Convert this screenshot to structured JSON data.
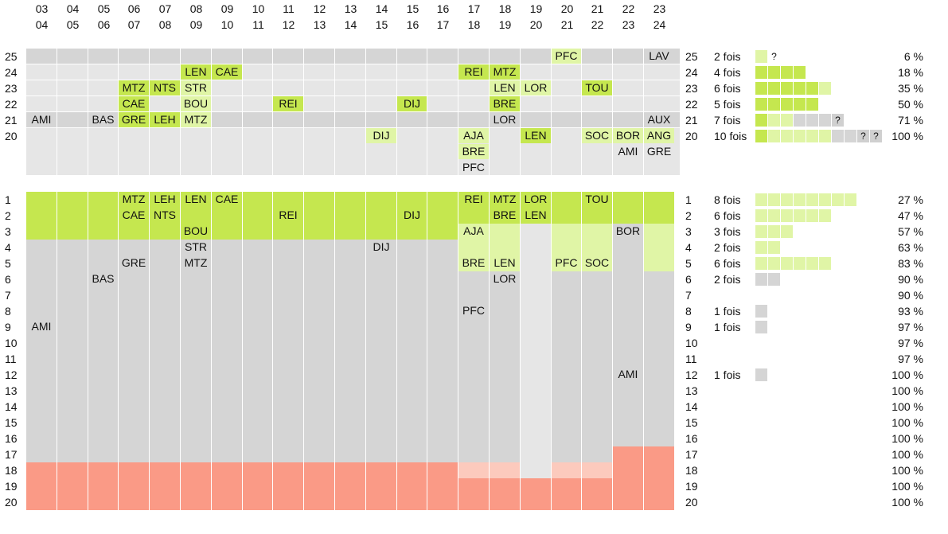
{
  "chart_data": {
    "type": "table",
    "columns": [
      {
        "top": "03",
        "bottom": "04"
      },
      {
        "top": "04",
        "bottom": "05"
      },
      {
        "top": "05",
        "bottom": "06"
      },
      {
        "top": "06",
        "bottom": "07"
      },
      {
        "top": "07",
        "bottom": "08"
      },
      {
        "top": "08",
        "bottom": "09"
      },
      {
        "top": "09",
        "bottom": "10"
      },
      {
        "top": "10",
        "bottom": "11"
      },
      {
        "top": "11",
        "bottom": "12"
      },
      {
        "top": "12",
        "bottom": "13"
      },
      {
        "top": "13",
        "bottom": "14"
      },
      {
        "top": "14",
        "bottom": "15"
      },
      {
        "top": "15",
        "bottom": "16"
      },
      {
        "top": "16",
        "bottom": "17"
      },
      {
        "top": "17",
        "bottom": "18"
      },
      {
        "top": "18",
        "bottom": "19"
      },
      {
        "top": "19",
        "bottom": "20"
      },
      {
        "top": "20",
        "bottom": "21"
      },
      {
        "top": "21",
        "bottom": "22"
      },
      {
        "top": "22",
        "bottom": "23"
      },
      {
        "top": "23",
        "bottom": "24"
      }
    ],
    "upper_section": {
      "rows": [
        {
          "label": "25",
          "count": "2 fois",
          "percent": "6 %",
          "blocks": [
            "l",
            "?"
          ]
        },
        {
          "label": "24",
          "count": "4 fois",
          "percent": "18 %",
          "blocks": [
            "d",
            "d",
            "d",
            "d"
          ]
        },
        {
          "label": "23",
          "count": "6 fois",
          "percent": "35 %",
          "blocks": [
            "d",
            "d",
            "d",
            "d",
            "d",
            "l"
          ]
        },
        {
          "label": "22",
          "count": "5 fois",
          "percent": "50 %",
          "blocks": [
            "d",
            "d",
            "d",
            "d",
            "d"
          ]
        },
        {
          "label": "21",
          "count": "7 fois",
          "percent": "71 %",
          "blocks": [
            "d",
            "l",
            "l",
            "g",
            "g",
            "g",
            "?"
          ]
        },
        {
          "label": "20",
          "count": "10 fois",
          "percent": "100 %",
          "blocks": [
            "d",
            "l",
            "l",
            "l",
            "l",
            "l",
            "g",
            "g",
            "?",
            "?"
          ]
        }
      ],
      "entries": [
        {
          "col": 17,
          "row": "25",
          "team": "PFC",
          "shade": "l"
        },
        {
          "col": 20,
          "row": "25",
          "team": "LAV"
        },
        {
          "col": 5,
          "row": "24",
          "team": "LEN",
          "shade": "d"
        },
        {
          "col": 6,
          "row": "24",
          "team": "CAE",
          "shade": "d"
        },
        {
          "col": 14,
          "row": "24",
          "team": "REI",
          "shade": "d"
        },
        {
          "col": 15,
          "row": "24",
          "team": "MTZ",
          "shade": "d"
        },
        {
          "col": 3,
          "row": "23",
          "team": "MTZ",
          "shade": "d"
        },
        {
          "col": 4,
          "row": "23",
          "team": "NTS",
          "shade": "d"
        },
        {
          "col": 5,
          "row": "23",
          "team": "STR",
          "shade": "l"
        },
        {
          "col": 15,
          "row": "23",
          "team": "LEN",
          "shade": "l"
        },
        {
          "col": 16,
          "row": "23",
          "team": "LOR",
          "shade": "l"
        },
        {
          "col": 18,
          "row": "23",
          "team": "TOU",
          "shade": "d"
        },
        {
          "col": 3,
          "row": "22",
          "team": "CAE",
          "shade": "d"
        },
        {
          "col": 5,
          "row": "22",
          "team": "BOU",
          "shade": "l"
        },
        {
          "col": 8,
          "row": "22",
          "team": "REI",
          "shade": "d"
        },
        {
          "col": 12,
          "row": "22",
          "team": "DIJ",
          "shade": "d"
        },
        {
          "col": 15,
          "row": "22",
          "team": "BRE",
          "shade": "d"
        },
        {
          "col": 0,
          "row": "21",
          "team": "AMI"
        },
        {
          "col": 2,
          "row": "21",
          "team": "BAS"
        },
        {
          "col": 3,
          "row": "21",
          "team": "GRE",
          "shade": "d"
        },
        {
          "col": 4,
          "row": "21",
          "team": "LEH",
          "shade": "d"
        },
        {
          "col": 5,
          "row": "21",
          "team": "MTZ",
          "shade": "l"
        },
        {
          "col": 15,
          "row": "21",
          "team": "LOR"
        },
        {
          "col": 20,
          "row": "21",
          "team": "AUX"
        },
        {
          "col": 11,
          "row": "20",
          "line": 0,
          "team": "DIJ",
          "shade": "l"
        },
        {
          "col": 14,
          "row": "20",
          "line": 0,
          "team": "AJA",
          "shade": "l"
        },
        {
          "col": 16,
          "row": "20",
          "line": 0,
          "team": "LEN",
          "shade": "d"
        },
        {
          "col": 18,
          "row": "20",
          "line": 0,
          "team": "SOC",
          "shade": "l"
        },
        {
          "col": 19,
          "row": "20",
          "line": 0,
          "team": "BOR",
          "shade": "l"
        },
        {
          "col": 20,
          "row": "20",
          "line": 0,
          "team": "ANG",
          "shade": "l"
        },
        {
          "col": 14,
          "row": "20",
          "line": 1,
          "team": "BRE",
          "shade": "l"
        },
        {
          "col": 19,
          "row": "20",
          "line": 1,
          "team": "AMI"
        },
        {
          "col": 20,
          "row": "20",
          "line": 1,
          "team": "GRE"
        },
        {
          "col": 14,
          "row": "20",
          "line": 2,
          "team": "PFC"
        }
      ]
    },
    "lower_section": {
      "rows": [
        {
          "label": "1",
          "count": "8 fois",
          "percent": "27 %",
          "blocks": [
            "l",
            "l",
            "l",
            "l",
            "l",
            "l",
            "l",
            "l"
          ]
        },
        {
          "label": "2",
          "count": "6 fois",
          "percent": "47 %",
          "blocks": [
            "l",
            "l",
            "l",
            "l",
            "l",
            "l"
          ]
        },
        {
          "label": "3",
          "count": "3 fois",
          "percent": "57 %",
          "blocks": [
            "l",
            "l",
            "l"
          ]
        },
        {
          "label": "4",
          "count": "2 fois",
          "percent": "63 %",
          "blocks": [
            "l",
            "l"
          ]
        },
        {
          "label": "5",
          "count": "6 fois",
          "percent": "83 %",
          "blocks": [
            "l",
            "l",
            "l",
            "l",
            "l",
            "l"
          ]
        },
        {
          "label": "6",
          "count": "2 fois",
          "percent": "90 %",
          "blocks": [
            "g",
            "g"
          ]
        },
        {
          "label": "7",
          "count": "",
          "percent": "90 %",
          "blocks": []
        },
        {
          "label": "8",
          "count": "1 fois",
          "percent": "93 %",
          "blocks": [
            "g"
          ]
        },
        {
          "label": "9",
          "count": "1 fois",
          "percent": "97 %",
          "blocks": [
            "g"
          ]
        },
        {
          "label": "10",
          "count": "",
          "percent": "97 %",
          "blocks": []
        },
        {
          "label": "11",
          "count": "",
          "percent": "97 %",
          "blocks": []
        },
        {
          "label": "12",
          "count": "1 fois",
          "percent": "100 %",
          "blocks": [
            "g"
          ]
        },
        {
          "label": "13",
          "count": "",
          "percent": "100 %",
          "blocks": []
        },
        {
          "label": "14",
          "count": "",
          "percent": "100 %",
          "blocks": []
        },
        {
          "label": "15",
          "count": "",
          "percent": "100 %",
          "blocks": []
        },
        {
          "label": "16",
          "count": "",
          "percent": "100 %",
          "blocks": []
        },
        {
          "label": "17",
          "count": "",
          "percent": "100 %",
          "blocks": []
        },
        {
          "label": "18",
          "count": "",
          "percent": "100 %",
          "blocks": []
        },
        {
          "label": "19",
          "count": "",
          "percent": "100 %",
          "blocks": []
        },
        {
          "label": "20",
          "count": "",
          "percent": "100 %",
          "blocks": []
        }
      ],
      "column_zones": [
        {
          "green_to": 3,
          "grey_to": 17
        },
        {
          "green_to": 3,
          "grey_to": 17
        },
        {
          "green_to": 3,
          "grey_to": 17
        },
        {
          "green_to": 3,
          "grey_to": 17
        },
        {
          "green_to": 3,
          "grey_to": 17
        },
        {
          "green_to": 3,
          "grey_to": 17
        },
        {
          "green_to": 3,
          "grey_to": 17
        },
        {
          "green_to": 3,
          "grey_to": 17
        },
        {
          "green_to": 3,
          "grey_to": 17
        },
        {
          "green_to": 3,
          "grey_to": 17
        },
        {
          "green_to": 3,
          "grey_to": 17
        },
        {
          "green_to": 3,
          "grey_to": 17
        },
        {
          "green_to": 3,
          "grey_to": 17
        },
        {
          "green_to": 3,
          "grey_to": 17
        },
        {
          "green_to": 2,
          "light_to": 5,
          "grey_to": 17,
          "light_red_to": 18
        },
        {
          "green_to": 2,
          "light_to": 5,
          "grey_to": 17,
          "light_red_to": 18
        },
        {
          "green_to": 2,
          "light_to": 2,
          "grey_to": 18
        },
        {
          "green_to": 2,
          "light_to": 5,
          "grey_to": 17,
          "light_red_to": 18
        },
        {
          "green_to": 2,
          "light_to": 5,
          "grey_to": 17,
          "light_red_to": 18
        },
        {
          "green_to": 2,
          "grey_to": 16
        },
        {
          "green_to": 2,
          "light_to": 5,
          "grey_to": 16
        }
      ],
      "entries": [
        {
          "col": 3,
          "row": "1",
          "team": "MTZ"
        },
        {
          "col": 4,
          "row": "1",
          "team": "LEH"
        },
        {
          "col": 5,
          "row": "1",
          "team": "LEN"
        },
        {
          "col": 6,
          "row": "1",
          "team": "CAE"
        },
        {
          "col": 14,
          "row": "1",
          "team": "REI"
        },
        {
          "col": 15,
          "row": "1",
          "team": "MTZ"
        },
        {
          "col": 16,
          "row": "1",
          "team": "LOR"
        },
        {
          "col": 18,
          "row": "1",
          "team": "TOU"
        },
        {
          "col": 3,
          "row": "2",
          "team": "CAE"
        },
        {
          "col": 4,
          "row": "2",
          "team": "NTS"
        },
        {
          "col": 8,
          "row": "2",
          "team": "REI"
        },
        {
          "col": 12,
          "row": "2",
          "team": "DIJ"
        },
        {
          "col": 15,
          "row": "2",
          "team": "BRE"
        },
        {
          "col": 16,
          "row": "2",
          "team": "LEN"
        },
        {
          "col": 5,
          "row": "3",
          "team": "BOU"
        },
        {
          "col": 14,
          "row": "3",
          "team": "AJA"
        },
        {
          "col": 19,
          "row": "3",
          "team": "BOR"
        },
        {
          "col": 5,
          "row": "4",
          "team": "STR"
        },
        {
          "col": 11,
          "row": "4",
          "team": "DIJ"
        },
        {
          "col": 3,
          "row": "5",
          "team": "GRE"
        },
        {
          "col": 5,
          "row": "5",
          "team": "MTZ"
        },
        {
          "col": 14,
          "row": "5",
          "team": "BRE"
        },
        {
          "col": 15,
          "row": "5",
          "team": "LEN"
        },
        {
          "col": 17,
          "row": "5",
          "team": "PFC"
        },
        {
          "col": 18,
          "row": "5",
          "team": "SOC"
        },
        {
          "col": 2,
          "row": "6",
          "team": "BAS"
        },
        {
          "col": 15,
          "row": "6",
          "team": "LOR"
        },
        {
          "col": 14,
          "row": "8",
          "team": "PFC"
        },
        {
          "col": 0,
          "row": "9",
          "team": "AMI"
        },
        {
          "col": 19,
          "row": "12",
          "team": "AMI"
        }
      ]
    }
  },
  "colors": {
    "dark_green": "#c5e74f",
    "light_green": "#e0f5a6",
    "grey": "#d5d5d5",
    "light_grey": "#e6e6e6",
    "red": "#fa9a86",
    "light_red": "#fccabd"
  }
}
